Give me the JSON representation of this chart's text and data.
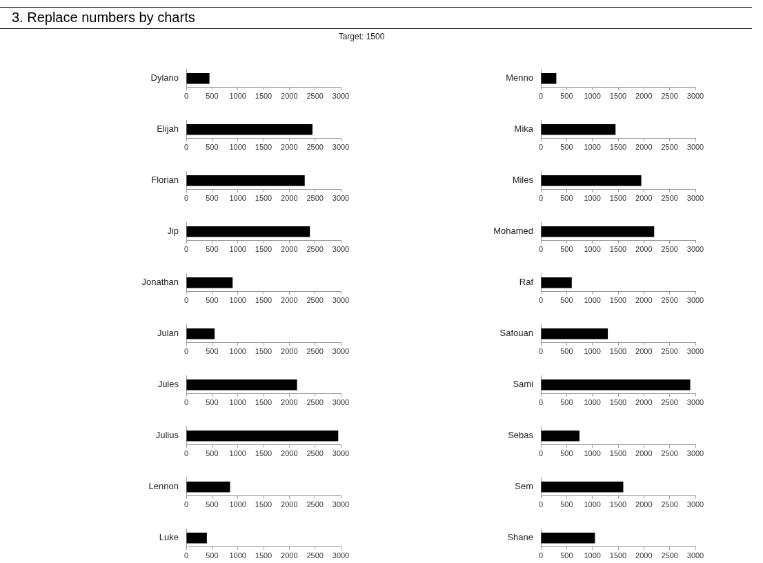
{
  "chart_data": [
    {
      "type": "bar",
      "orientation": "horizontal",
      "categories": [
        "Dylano"
      ],
      "values": [
        450
      ],
      "color": "#000000",
      "xlim": [
        0,
        3000
      ],
      "xticks": [
        0,
        500,
        1000,
        1500,
        2000,
        2500,
        3000
      ]
    },
    {
      "type": "bar",
      "orientation": "horizontal",
      "categories": [
        "Elijah"
      ],
      "values": [
        2450
      ],
      "color": "#000000",
      "xlim": [
        0,
        3000
      ],
      "xticks": [
        0,
        500,
        1000,
        1500,
        2000,
        2500,
        3000
      ]
    },
    {
      "type": "bar",
      "orientation": "horizontal",
      "categories": [
        "Florian"
      ],
      "values": [
        2300
      ],
      "color": "#000000",
      "xlim": [
        0,
        3000
      ],
      "xticks": [
        0,
        500,
        1000,
        1500,
        2000,
        2500,
        3000
      ]
    },
    {
      "type": "bar",
      "orientation": "horizontal",
      "categories": [
        "Jip"
      ],
      "values": [
        2400
      ],
      "color": "#000000",
      "xlim": [
        0,
        3000
      ],
      "xticks": [
        0,
        500,
        1000,
        1500,
        2000,
        2500,
        3000
      ]
    },
    {
      "type": "bar",
      "orientation": "horizontal",
      "categories": [
        "Jonathan"
      ],
      "values": [
        900
      ],
      "color": "#000000",
      "xlim": [
        0,
        3000
      ],
      "xticks": [
        0,
        500,
        1000,
        1500,
        2000,
        2500,
        3000
      ]
    },
    {
      "type": "bar",
      "orientation": "horizontal",
      "categories": [
        "Julan"
      ],
      "values": [
        550
      ],
      "color": "#000000",
      "xlim": [
        0,
        3000
      ],
      "xticks": [
        0,
        500,
        1000,
        1500,
        2000,
        2500,
        3000
      ]
    },
    {
      "type": "bar",
      "orientation": "horizontal",
      "categories": [
        "Jules"
      ],
      "values": [
        2150
      ],
      "color": "#000000",
      "xlim": [
        0,
        3000
      ],
      "xticks": [
        0,
        500,
        1000,
        1500,
        2000,
        2500,
        3000
      ]
    },
    {
      "type": "bar",
      "orientation": "horizontal",
      "categories": [
        "Julius"
      ],
      "values": [
        2950
      ],
      "color": "#000000",
      "xlim": [
        0,
        3000
      ],
      "xticks": [
        0,
        500,
        1000,
        1500,
        2000,
        2500,
        3000
      ]
    },
    {
      "type": "bar",
      "orientation": "horizontal",
      "categories": [
        "Lennon"
      ],
      "values": [
        850
      ],
      "color": "#000000",
      "xlim": [
        0,
        3000
      ],
      "xticks": [
        0,
        500,
        1000,
        1500,
        2000,
        2500,
        3000
      ]
    },
    {
      "type": "bar",
      "orientation": "horizontal",
      "categories": [
        "Luke"
      ],
      "values": [
        400
      ],
      "color": "#000000",
      "xlim": [
        0,
        3000
      ],
      "xticks": [
        0,
        500,
        1000,
        1500,
        2000,
        2500,
        3000
      ]
    },
    {
      "type": "bar",
      "orientation": "horizontal",
      "categories": [
        "Menno"
      ],
      "values": [
        300
      ],
      "color": "#000000",
      "xlim": [
        0,
        3000
      ],
      "xticks": [
        0,
        500,
        1000,
        1500,
        2000,
        2500,
        3000
      ]
    },
    {
      "type": "bar",
      "orientation": "horizontal",
      "categories": [
        "Mika"
      ],
      "values": [
        1450
      ],
      "color": "#000000",
      "xlim": [
        0,
        3000
      ],
      "xticks": [
        0,
        500,
        1000,
        1500,
        2000,
        2500,
        3000
      ]
    },
    {
      "type": "bar",
      "orientation": "horizontal",
      "categories": [
        "Miles"
      ],
      "values": [
        1950
      ],
      "color": "#000000",
      "xlim": [
        0,
        3000
      ],
      "xticks": [
        0,
        500,
        1000,
        1500,
        2000,
        2500,
        3000
      ]
    },
    {
      "type": "bar",
      "orientation": "horizontal",
      "categories": [
        "Mohamed"
      ],
      "values": [
        2200
      ],
      "color": "#000000",
      "xlim": [
        0,
        3000
      ],
      "xticks": [
        0,
        500,
        1000,
        1500,
        2000,
        2500,
        3000
      ]
    },
    {
      "type": "bar",
      "orientation": "horizontal",
      "categories": [
        "Raf"
      ],
      "values": [
        600
      ],
      "color": "#000000",
      "xlim": [
        0,
        3000
      ],
      "xticks": [
        0,
        500,
        1000,
        1500,
        2000,
        2500,
        3000
      ]
    },
    {
      "type": "bar",
      "orientation": "horizontal",
      "categories": [
        "Safouan"
      ],
      "values": [
        1300
      ],
      "color": "#000000",
      "xlim": [
        0,
        3000
      ],
      "xticks": [
        0,
        500,
        1000,
        1500,
        2000,
        2500,
        3000
      ]
    },
    {
      "type": "bar",
      "orientation": "horizontal",
      "categories": [
        "Sami"
      ],
      "values": [
        2900
      ],
      "color": "#000000",
      "xlim": [
        0,
        3000
      ],
      "xticks": [
        0,
        500,
        1000,
        1500,
        2000,
        2500,
        3000
      ]
    },
    {
      "type": "bar",
      "orientation": "horizontal",
      "categories": [
        "Sebas"
      ],
      "values": [
        750
      ],
      "color": "#000000",
      "xlim": [
        0,
        3000
      ],
      "xticks": [
        0,
        500,
        1000,
        1500,
        2000,
        2500,
        3000
      ]
    },
    {
      "type": "bar",
      "orientation": "horizontal",
      "categories": [
        "Sem"
      ],
      "values": [
        1600
      ],
      "color": "#000000",
      "xlim": [
        0,
        3000
      ],
      "xticks": [
        0,
        500,
        1000,
        1500,
        2000,
        2500,
        3000
      ]
    },
    {
      "type": "bar",
      "orientation": "horizontal",
      "categories": [
        "Shane"
      ],
      "values": [
        1050
      ],
      "color": "#000000",
      "xlim": [
        0,
        3000
      ],
      "xticks": [
        0,
        500,
        1000,
        1500,
        2000,
        2500,
        3000
      ]
    },
    {
      "type": "other",
      "title": "3. Replace numbers by charts",
      "annotations": [
        "Target: 1500"
      ]
    }
  ]
}
